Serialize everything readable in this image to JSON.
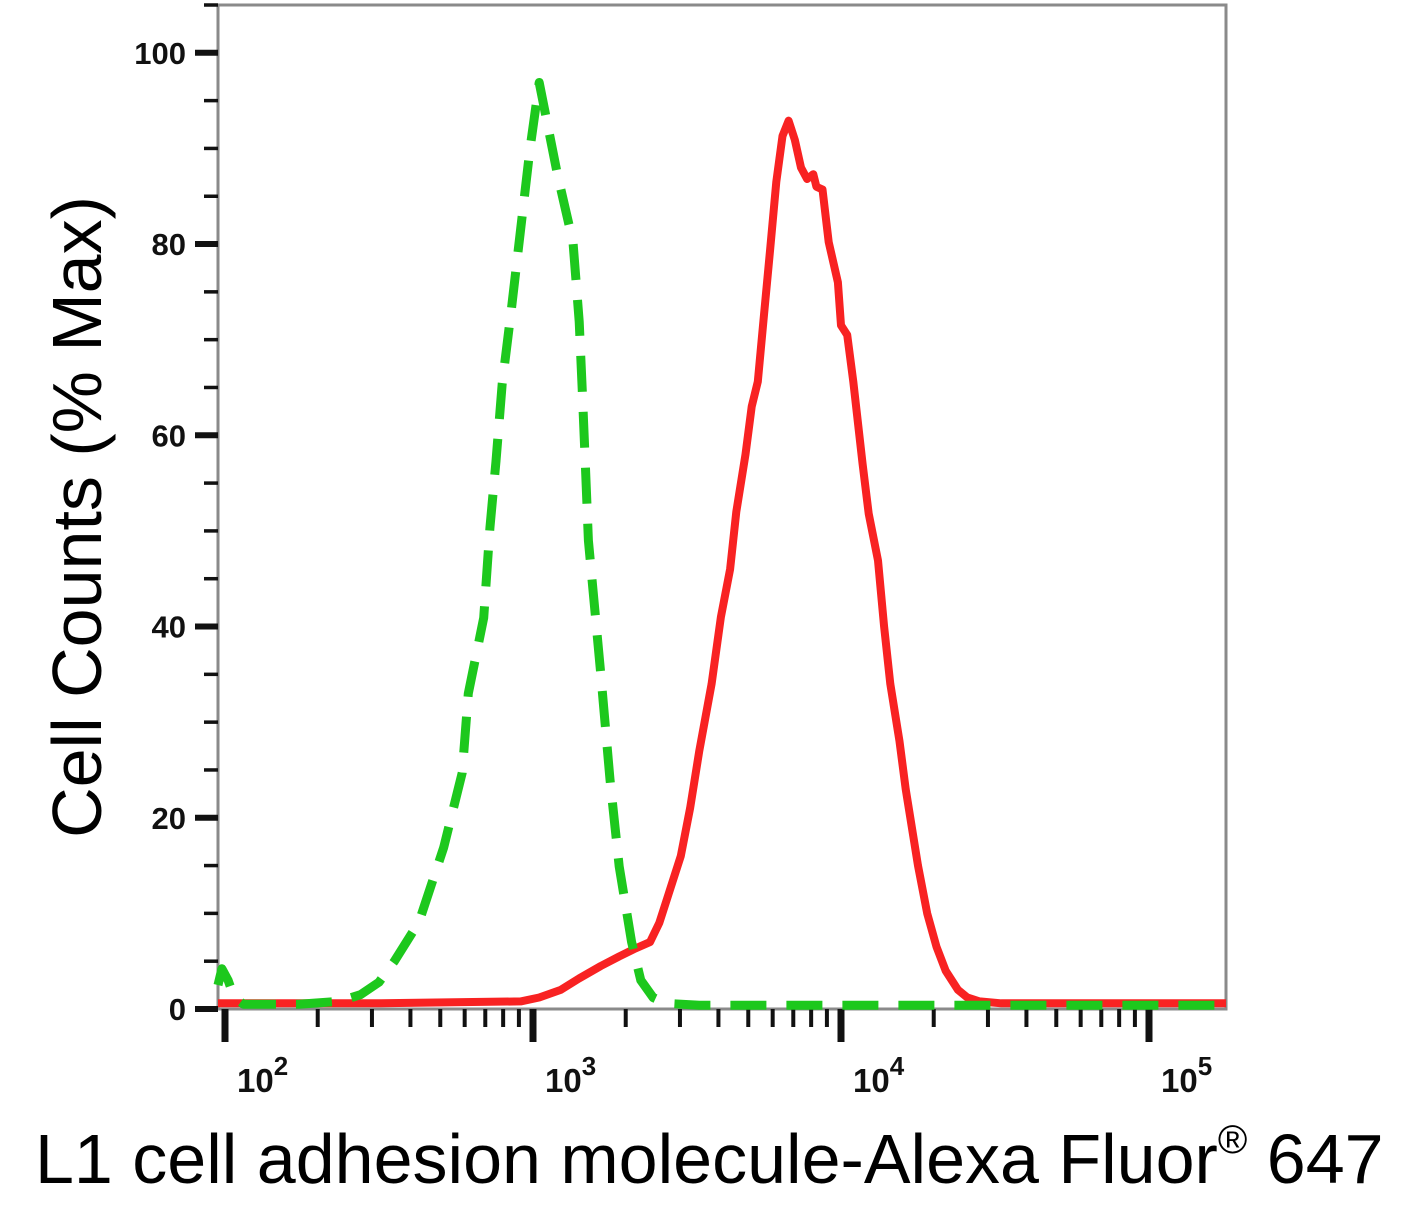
{
  "figure": {
    "ylabel": "Cell Counts (% Max)",
    "xlabel_main": "L1 cell adhesion molecule-Alexa Fluor",
    "xlabel_reg": "®",
    "xlabel_suffix": " 647"
  },
  "colors": {
    "background": "#ffffff",
    "frame": "#8a8a8a",
    "ticks": "#111111",
    "text": "#000000",
    "green_series": "#1dc81d",
    "red_series": "#f82222"
  },
  "chart_data": {
    "type": "line",
    "subtype": "flow-cytometry-histogram-overlay",
    "title": "",
    "xlabel": "L1 cell adhesion molecule-Alexa Fluor® 647",
    "ylabel": "Cell Counts (% Max)",
    "grid": false,
    "legend_position": "none",
    "x_scale": "log10",
    "x_axis": {
      "min_log10": 1.977,
      "max_log10": 5.25,
      "major_ticks": [
        100,
        1000,
        10000,
        100000
      ],
      "major_tick_base": "10",
      "major_tick_exponents": [
        2,
        3,
        4,
        5
      ],
      "minor_tick_multiples": [
        2,
        3,
        4,
        5,
        6,
        7,
        8,
        9
      ]
    },
    "y_axis": {
      "min": 0,
      "max": 105,
      "major_ticks": [
        0,
        20,
        40,
        60,
        80,
        100
      ],
      "major_tick_step": 20,
      "minor_tick_step": 5
    },
    "series": [
      {
        "name": "red solid curve",
        "color": "#f82222",
        "line_style": "solid",
        "line_width": 8,
        "peak_x_log10": 3.83,
        "peak_y_pct": 93,
        "points": [
          [
            1.977,
            0.6
          ],
          [
            2.5,
            0.6
          ],
          [
            2.96,
            0.8
          ],
          [
            3.02,
            1.2
          ],
          [
            3.09,
            2
          ],
          [
            3.15,
            3.2
          ],
          [
            3.22,
            4.5
          ],
          [
            3.28,
            5.5
          ],
          [
            3.33,
            6.3
          ],
          [
            3.38,
            7
          ],
          [
            3.41,
            9
          ],
          [
            3.44,
            12
          ],
          [
            3.48,
            16
          ],
          [
            3.51,
            21
          ],
          [
            3.54,
            27
          ],
          [
            3.58,
            34
          ],
          [
            3.61,
            41
          ],
          [
            3.64,
            46
          ],
          [
            3.66,
            52
          ],
          [
            3.69,
            58
          ],
          [
            3.71,
            63
          ],
          [
            3.73,
            65.6
          ],
          [
            3.75,
            72.6
          ],
          [
            3.77,
            79.5
          ],
          [
            3.79,
            86.5
          ],
          [
            3.81,
            91.3
          ],
          [
            3.83,
            92.9
          ],
          [
            3.85,
            90.9
          ],
          [
            3.87,
            88
          ],
          [
            3.89,
            86.8
          ],
          [
            3.91,
            87.3
          ],
          [
            3.92,
            86
          ],
          [
            3.94,
            85.7
          ],
          [
            3.96,
            80.2
          ],
          [
            3.99,
            76
          ],
          [
            4.0,
            71.5
          ],
          [
            4.02,
            70.5
          ],
          [
            4.04,
            65.6
          ],
          [
            4.07,
            57
          ],
          [
            4.09,
            51.8
          ],
          [
            4.12,
            46.9
          ],
          [
            4.14,
            40
          ],
          [
            4.16,
            34
          ],
          [
            4.19,
            28
          ],
          [
            4.21,
            23
          ],
          [
            4.25,
            15
          ],
          [
            4.28,
            10
          ],
          [
            4.31,
            6.5
          ],
          [
            4.34,
            4
          ],
          [
            4.38,
            2
          ],
          [
            4.41,
            1.2
          ],
          [
            4.45,
            0.8
          ],
          [
            4.52,
            0.6
          ],
          [
            5.25,
            0.6
          ]
        ]
      },
      {
        "name": "green dashed curve",
        "color": "#1dc81d",
        "line_style": "dashed",
        "line_width": 9,
        "peak_x_log10": 3.02,
        "peak_y_pct": 97,
        "points": [
          [
            1.977,
            2.5
          ],
          [
            1.99,
            4.2
          ],
          [
            2.01,
            3
          ],
          [
            2.03,
            1.2
          ],
          [
            2.06,
            0.5
          ],
          [
            2.24,
            0.5
          ],
          [
            2.37,
            0.8
          ],
          [
            2.44,
            1.5
          ],
          [
            2.5,
            2.8
          ],
          [
            2.55,
            5
          ],
          [
            2.63,
            9.1
          ],
          [
            2.71,
            16.9
          ],
          [
            2.77,
            24.7
          ],
          [
            2.79,
            33
          ],
          [
            2.84,
            40.9
          ],
          [
            2.86,
            50.3
          ],
          [
            2.88,
            57.3
          ],
          [
            2.9,
            65.4
          ],
          [
            2.93,
            73.2
          ],
          [
            2.96,
            81.6
          ],
          [
            2.99,
            89.9
          ],
          [
            3.02,
            96.9
          ],
          [
            3.08,
            87.2
          ],
          [
            3.13,
            80.2
          ],
          [
            3.15,
            71.9
          ],
          [
            3.16,
            64.6
          ],
          [
            3.17,
            56.8
          ],
          [
            3.18,
            49
          ],
          [
            3.22,
            35
          ],
          [
            3.25,
            24
          ],
          [
            3.28,
            14.9
          ],
          [
            3.32,
            7
          ],
          [
            3.35,
            3
          ],
          [
            3.39,
            1.2
          ],
          [
            3.43,
            0.6
          ],
          [
            3.54,
            0.4
          ],
          [
            5.25,
            0.4
          ]
        ]
      }
    ]
  }
}
